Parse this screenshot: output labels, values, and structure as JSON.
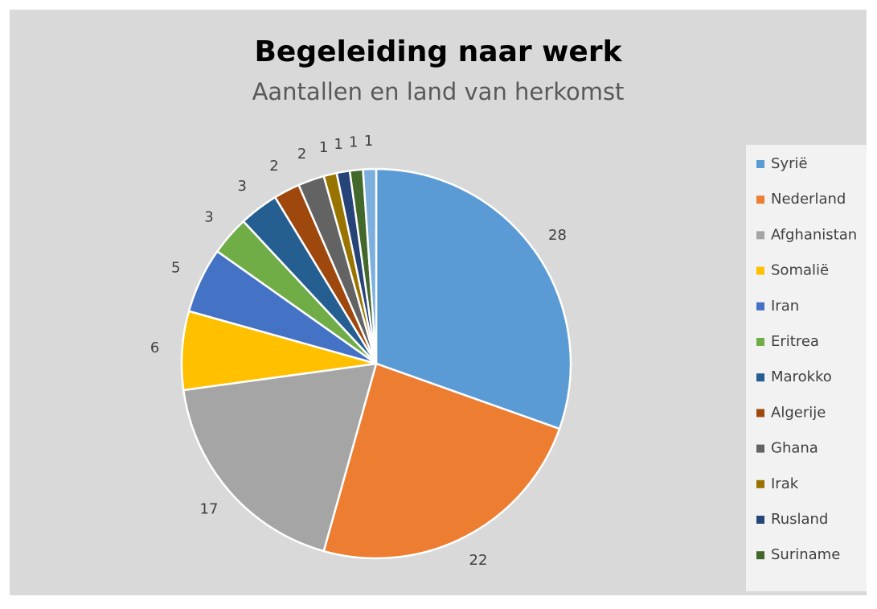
{
  "chart_data": {
    "type": "pie",
    "title": "Begeleiding naar werk",
    "subtitle": "Aantallen en land van herkomst",
    "categories": [
      "Syrië",
      "Nederland",
      "Afghanistan",
      "Somalië",
      "Iran",
      "Eritrea",
      "Marokko",
      "Algerije",
      "Ghana",
      "Irak",
      "Rusland",
      "Suriname",
      null
    ],
    "values": [
      28,
      22,
      17,
      6,
      5,
      3,
      3,
      2,
      2,
      1,
      1,
      1,
      1
    ],
    "colors": [
      "#5b9bd5",
      "#ed7d31",
      "#a5a5a5",
      "#ffc000",
      "#4472c4",
      "#70ad47",
      "#255e91",
      "#9e480e",
      "#636363",
      "#997300",
      "#264478",
      "#43682b",
      "#7cafdd"
    ],
    "legend": "right"
  }
}
